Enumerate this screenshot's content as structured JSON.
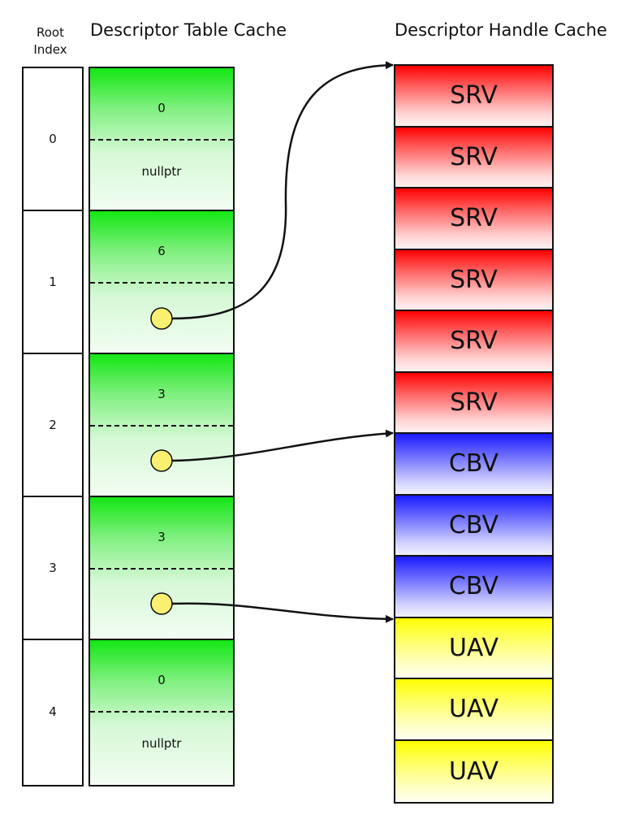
{
  "headers": {
    "root_index_line1": "Root",
    "root_index_line2": "Index",
    "descriptor_table_cache": "Descriptor Table Cache",
    "descriptor_handle_cache": "Descriptor Handle Cache"
  },
  "root_indices": [
    "0",
    "1",
    "2",
    "3",
    "4"
  ],
  "descriptor_table_cache": [
    {
      "count": "0",
      "pointer": "nullptr",
      "has_pointer": false
    },
    {
      "count": "6",
      "pointer": "",
      "has_pointer": true
    },
    {
      "count": "3",
      "pointer": "",
      "has_pointer": true
    },
    {
      "count": "3",
      "pointer": "",
      "has_pointer": true
    },
    {
      "count": "0",
      "pointer": "nullptr",
      "has_pointer": false
    }
  ],
  "descriptor_handle_cache": [
    {
      "label": "SRV",
      "type": "srv"
    },
    {
      "label": "SRV",
      "type": "srv"
    },
    {
      "label": "SRV",
      "type": "srv"
    },
    {
      "label": "SRV",
      "type": "srv"
    },
    {
      "label": "SRV",
      "type": "srv"
    },
    {
      "label": "SRV",
      "type": "srv"
    },
    {
      "label": "CBV",
      "type": "cbv"
    },
    {
      "label": "CBV",
      "type": "cbv"
    },
    {
      "label": "CBV",
      "type": "cbv"
    },
    {
      "label": "UAV",
      "type": "uav"
    },
    {
      "label": "UAV",
      "type": "uav"
    },
    {
      "label": "UAV",
      "type": "uav"
    }
  ],
  "pointer_targets": [
    {
      "from_root_index": "1",
      "to_handle_slot": 0
    },
    {
      "from_root_index": "2",
      "to_handle_slot": 6
    },
    {
      "from_root_index": "3",
      "to_handle_slot": 9
    }
  ],
  "colors": {
    "srv": "#ff0000",
    "cbv": "#1a1aff",
    "uav": "#ffff00",
    "table": "#14e614",
    "pointer_dot": "#f7f070",
    "outline": "#111111"
  }
}
